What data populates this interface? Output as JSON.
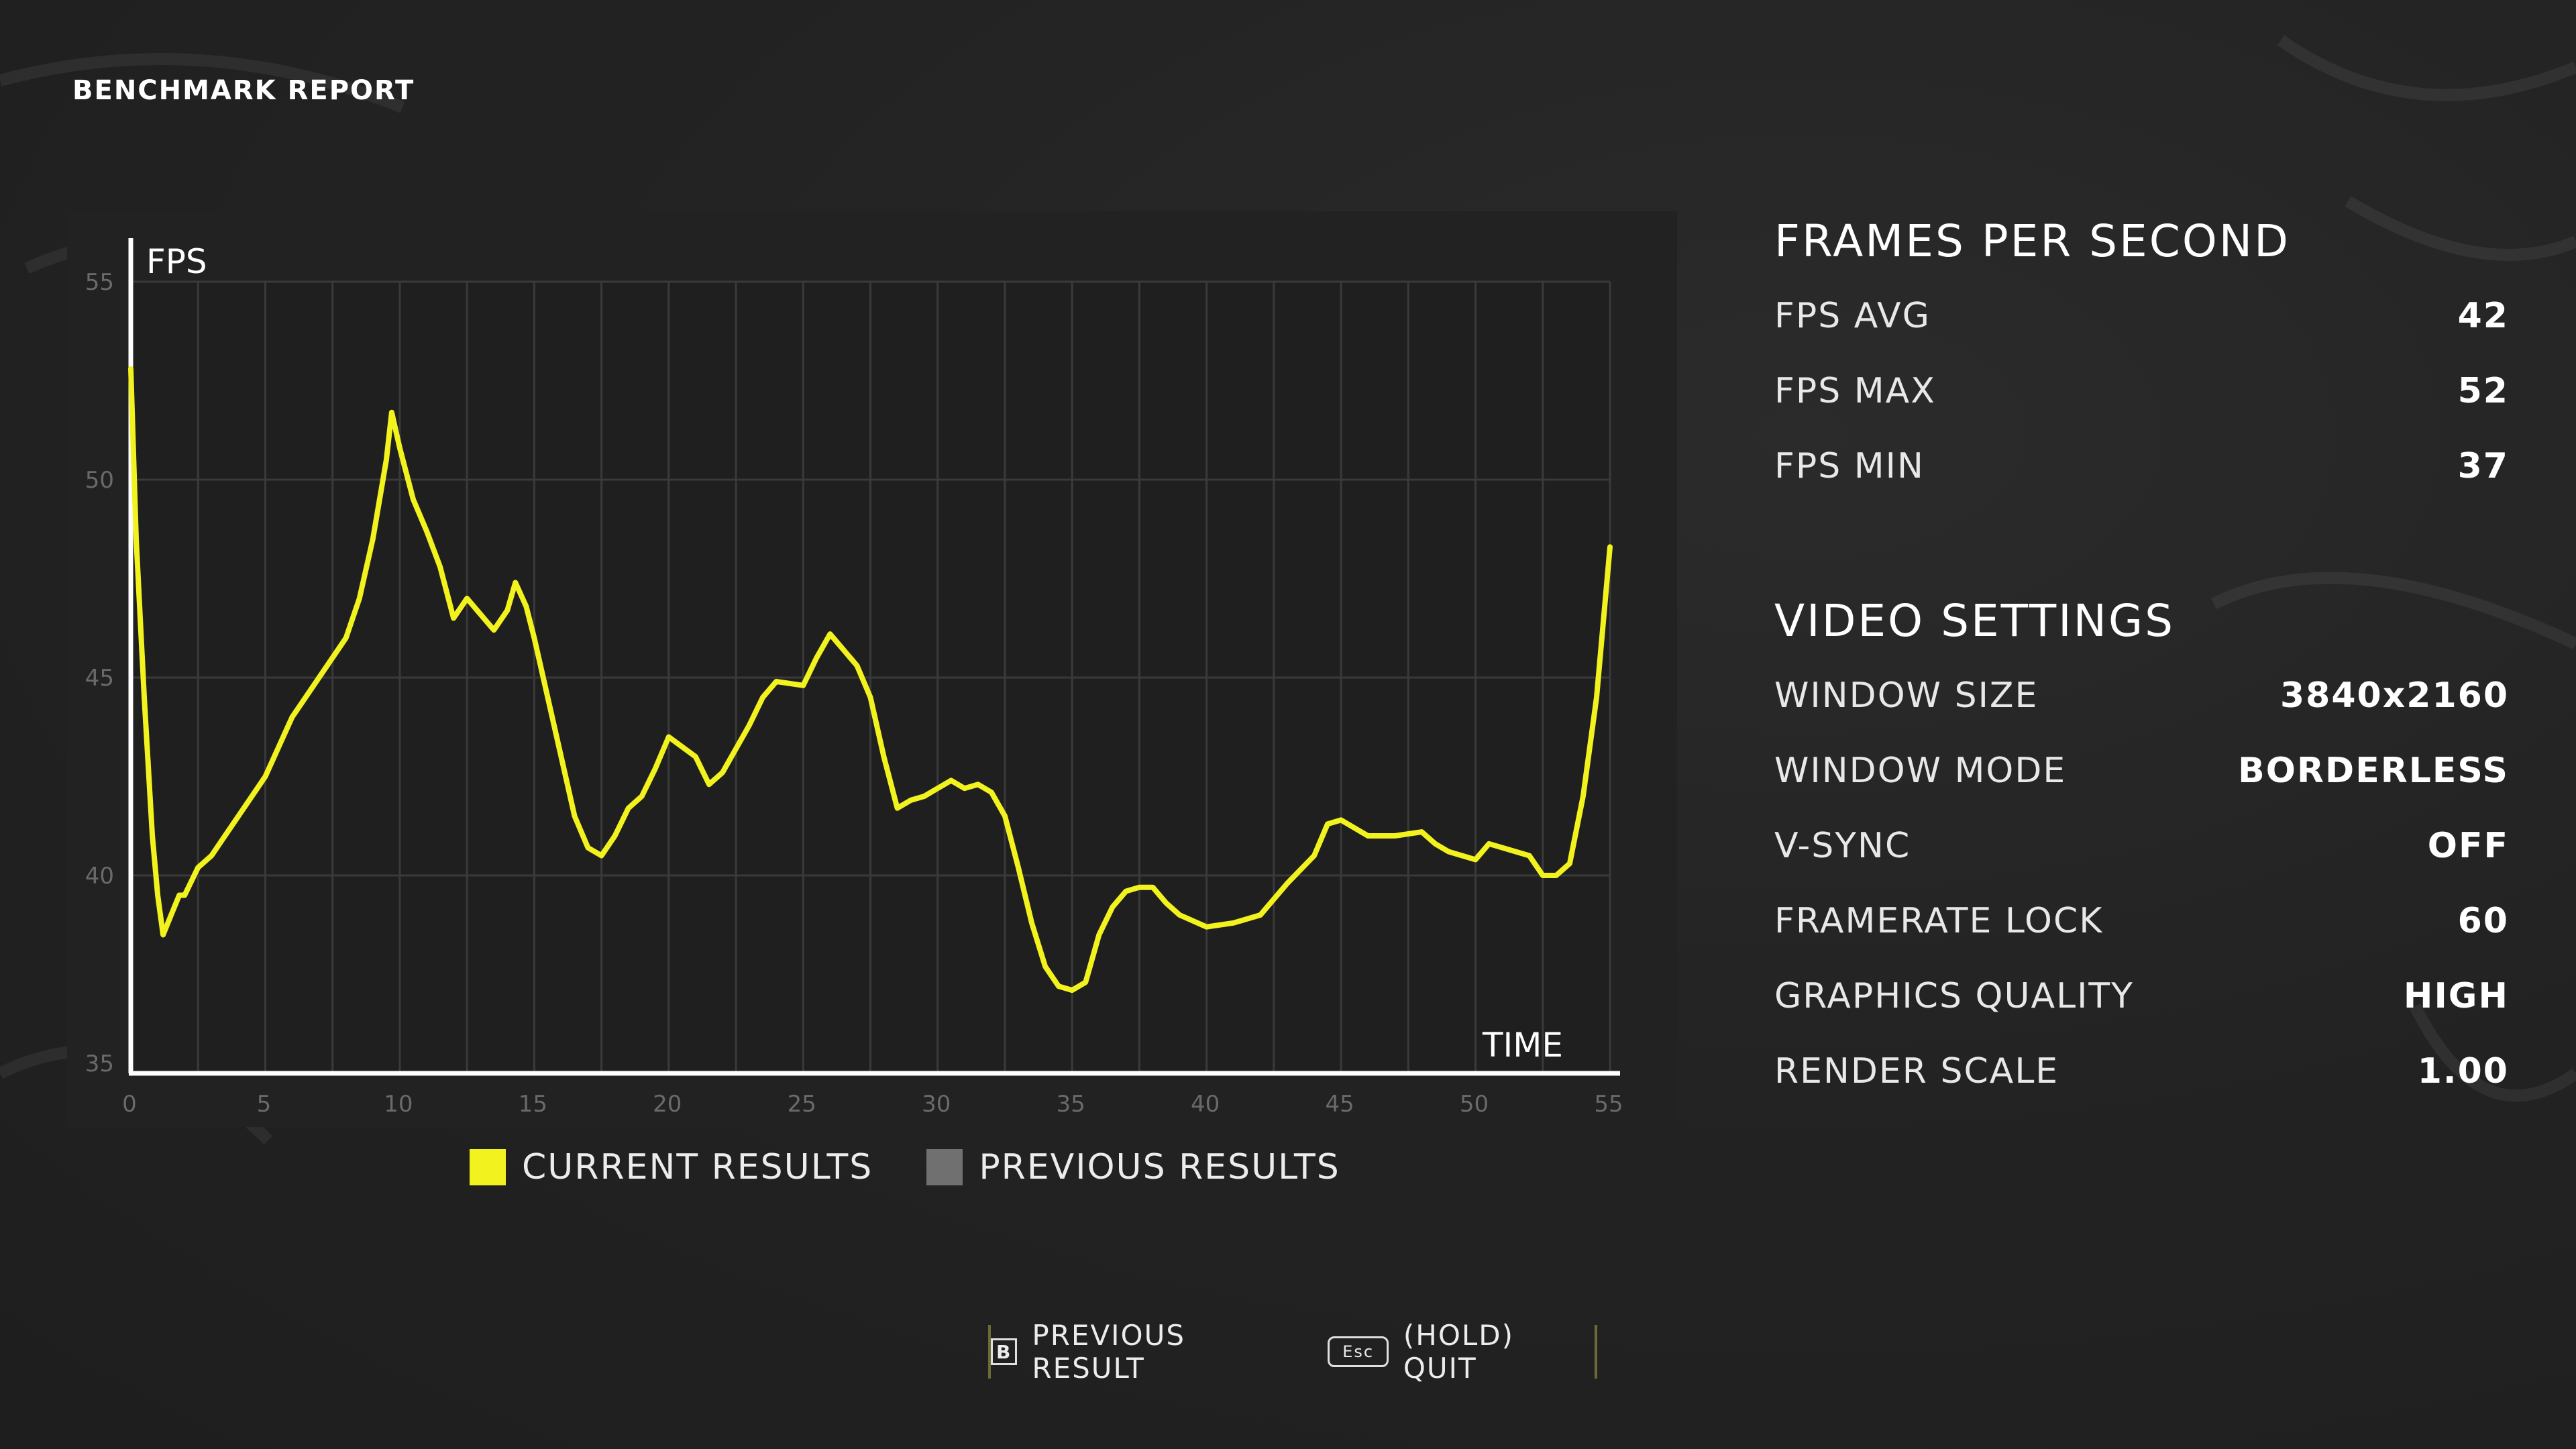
{
  "page": {
    "title": "BENCHMARK REPORT"
  },
  "chart_data": {
    "type": "line",
    "ylabel": "FPS",
    "xlabel": "TIME",
    "xlim": [
      0,
      55
    ],
    "ylim": [
      35,
      55
    ],
    "x_ticks": [
      "0",
      "5",
      "10",
      "15",
      "20",
      "25",
      "30",
      "35",
      "40",
      "45",
      "50",
      "55"
    ],
    "y_ticks": [
      "35",
      "40",
      "45",
      "50",
      "55"
    ],
    "grid": true,
    "legend": [
      {
        "label": "CURRENT RESULTS",
        "color": "#f2f21e"
      },
      {
        "label": "PREVIOUS RESULTS",
        "color": "#707070"
      }
    ],
    "series": [
      {
        "name": "CURRENT RESULTS",
        "color": "#f2f21e",
        "x": [
          0,
          0.2,
          0.5,
          0.8,
          1.0,
          1.2,
          1.5,
          1.8,
          2.0,
          2.5,
          3.0,
          3.5,
          4.0,
          5.0,
          6.0,
          7.0,
          8.0,
          8.5,
          9.0,
          9.5,
          9.7,
          10.0,
          10.5,
          11.0,
          11.5,
          12.0,
          12.5,
          13.0,
          13.5,
          14.0,
          14.3,
          14.7,
          15.0,
          16.0,
          16.5,
          17.0,
          17.5,
          18.0,
          18.5,
          19.0,
          19.5,
          20.0,
          21.0,
          21.5,
          22.0,
          23.0,
          23.5,
          24.0,
          25.0,
          25.5,
          26.0,
          27.0,
          27.5,
          28.0,
          28.5,
          29.0,
          29.5,
          30.0,
          30.5,
          31.0,
          31.5,
          32.0,
          32.5,
          33.0,
          33.5,
          34.0,
          34.5,
          35.0,
          35.5,
          36.0,
          36.5,
          37.0,
          37.5,
          38.0,
          38.5,
          39.0,
          40.0,
          41.0,
          42.0,
          43.0,
          44.0,
          44.5,
          45.0,
          46.0,
          47.0,
          48.0,
          48.5,
          49.0,
          50.0,
          50.5,
          51.0,
          52.0,
          52.5,
          53.0,
          53.5,
          54.0,
          54.5,
          55.0
        ],
        "values": [
          52.8,
          48.5,
          44.5,
          41.0,
          39.5,
          38.5,
          39.0,
          39.5,
          39.5,
          40.2,
          40.5,
          41.0,
          41.5,
          42.5,
          44.0,
          45.0,
          46.0,
          47.0,
          48.5,
          50.5,
          51.7,
          50.8,
          49.5,
          48.7,
          47.8,
          46.5,
          47.0,
          46.6,
          46.2,
          46.7,
          47.4,
          46.8,
          46.0,
          43.0,
          41.5,
          40.7,
          40.5,
          41.0,
          41.7,
          42.0,
          42.7,
          43.5,
          43.0,
          42.3,
          42.6,
          43.8,
          44.5,
          44.9,
          44.8,
          45.5,
          46.1,
          45.3,
          44.5,
          43.0,
          41.7,
          41.9,
          42.0,
          42.2,
          42.4,
          42.2,
          42.3,
          42.1,
          41.5,
          40.2,
          38.8,
          37.7,
          37.2,
          37.1,
          37.3,
          38.5,
          39.2,
          39.6,
          39.7,
          39.7,
          39.3,
          39.0,
          38.7,
          38.8,
          39.0,
          39.8,
          40.5,
          41.3,
          41.4,
          41.0,
          41.0,
          41.1,
          40.8,
          40.6,
          40.4,
          40.8,
          40.7,
          40.5,
          40.0,
          40.0,
          40.3,
          42.0,
          44.5,
          48.3
        ]
      }
    ]
  },
  "fps": {
    "title": "FRAMES PER SECOND",
    "rows": [
      {
        "label": "FPS AVG",
        "value": "42"
      },
      {
        "label": "FPS MAX",
        "value": "52"
      },
      {
        "label": "FPS MIN",
        "value": "37"
      }
    ]
  },
  "video": {
    "title": "VIDEO SETTINGS",
    "rows": [
      {
        "label": "WINDOW SIZE",
        "value": "3840x2160"
      },
      {
        "label": "WINDOW MODE",
        "value": "BORDERLESS"
      },
      {
        "label": "V-SYNC",
        "value": "OFF"
      },
      {
        "label": "FRAMERATE LOCK",
        "value": "60"
      },
      {
        "label": "GRAPHICS QUALITY",
        "value": "HIGH"
      },
      {
        "label": "RENDER SCALE",
        "value": "1.00"
      }
    ]
  },
  "footer": {
    "previous_key": "B",
    "previous_label": "PREVIOUS RESULT",
    "quit_key": "Esc",
    "quit_label": "(HOLD) QUIT"
  }
}
